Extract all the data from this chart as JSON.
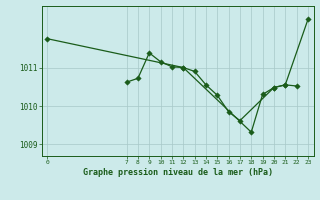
{
  "title": "Graphe pression niveau de la mer (hPa)",
  "bg_color": "#cceaea",
  "line_color": "#1a5c1a",
  "grid_color": "#a8c8c8",
  "line1_x": [
    0,
    12,
    13,
    14,
    15,
    16,
    17,
    20,
    21,
    23
  ],
  "line1_y": [
    1011.75,
    1011.0,
    1010.9,
    1010.55,
    1010.28,
    1009.85,
    1009.62,
    1010.48,
    1010.55,
    1012.25
  ],
  "line2_x": [
    7,
    8,
    9,
    10,
    11,
    12,
    18,
    19,
    20,
    21,
    22
  ],
  "line2_y": [
    1010.62,
    1010.72,
    1011.38,
    1011.15,
    1011.02,
    1011.0,
    1009.32,
    1010.3,
    1010.48,
    1010.55,
    1010.52
  ],
  "ylim": [
    1008.7,
    1012.6
  ],
  "yticks": [
    1009,
    1010,
    1011
  ],
  "xlim": [
    -0.5,
    23.5
  ],
  "xticks": [
    0,
    7,
    8,
    9,
    10,
    11,
    12,
    13,
    14,
    15,
    16,
    17,
    18,
    19,
    20,
    21,
    22,
    23
  ],
  "figsize": [
    3.2,
    2.0
  ],
  "dpi": 100
}
